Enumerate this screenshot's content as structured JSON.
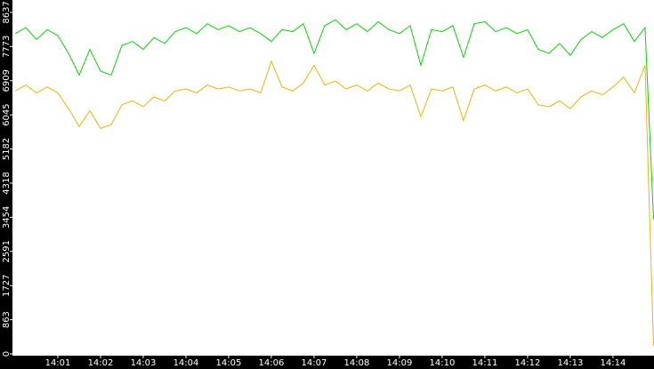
{
  "chart_data": {
    "type": "line",
    "x": [
      0,
      0.25,
      0.5,
      0.75,
      1,
      1.25,
      1.5,
      1.75,
      2,
      2.25,
      2.5,
      2.75,
      3,
      3.25,
      3.5,
      3.75,
      4,
      4.25,
      4.5,
      4.75,
      5,
      5.25,
      5.5,
      5.75,
      6,
      6.25,
      6.5,
      6.75,
      7,
      7.25,
      7.5,
      7.75,
      8,
      8.25,
      8.5,
      8.75,
      9,
      9.25,
      9.5,
      9.75,
      10,
      10.25,
      10.5,
      10.75,
      11,
      11.25,
      11.5,
      11.75,
      12,
      12.25,
      12.5,
      12.75,
      13,
      13.25,
      13.5,
      13.75,
      14,
      14.25,
      14.5,
      14.75,
      14.95
    ],
    "series": [
      {
        "color": "#00dd00",
        "values": [
          8100,
          8250,
          7950,
          8200,
          8050,
          7600,
          7050,
          7700,
          7150,
          7050,
          7800,
          7900,
          7700,
          8000,
          7850,
          8150,
          8250,
          8100,
          8350,
          8200,
          8300,
          8150,
          8250,
          8100,
          7900,
          8200,
          8150,
          8350,
          7600,
          8300,
          8450,
          8200,
          8350,
          8150,
          8400,
          8200,
          8100,
          8300,
          7300,
          8200,
          8150,
          8300,
          7500,
          8350,
          8400,
          8150,
          8250,
          8100,
          8200,
          7700,
          7600,
          7850,
          7550,
          7950,
          8150,
          8000,
          8200,
          8350,
          7900,
          8250,
          3400
        ]
      },
      {
        "color": "#f0b400",
        "values": [
          6650,
          6800,
          6600,
          6750,
          6600,
          6200,
          5750,
          6150,
          5700,
          5800,
          6300,
          6400,
          6250,
          6500,
          6400,
          6650,
          6700,
          6600,
          6800,
          6700,
          6750,
          6650,
          6700,
          6600,
          7400,
          6750,
          6650,
          6850,
          7300,
          6800,
          6900,
          6700,
          6800,
          6650,
          6850,
          6700,
          6650,
          6800,
          6000,
          6700,
          6650,
          6750,
          5900,
          6700,
          6800,
          6650,
          6750,
          6600,
          6700,
          6300,
          6250,
          6400,
          6200,
          6500,
          6650,
          6550,
          6750,
          7000,
          6600,
          7300,
          200
        ]
      }
    ],
    "xlim": [
      -0.0625,
      14.96
    ],
    "xticks": [
      {
        "value": 1,
        "label": "14:01"
      },
      {
        "value": 2,
        "label": "14:02"
      },
      {
        "value": 3,
        "label": "14:03"
      },
      {
        "value": 4,
        "label": "14:04"
      },
      {
        "value": 5,
        "label": "14:05"
      },
      {
        "value": 6,
        "label": "14:06"
      },
      {
        "value": 7,
        "label": "14:07"
      },
      {
        "value": 8,
        "label": "14:08"
      },
      {
        "value": 9,
        "label": "14:09"
      },
      {
        "value": 10,
        "label": "14:10"
      },
      {
        "value": 11,
        "label": "14:11"
      },
      {
        "value": 12,
        "label": "14:12"
      },
      {
        "value": 13,
        "label": "14:13"
      },
      {
        "value": 14,
        "label": "14:14"
      }
    ],
    "ylim": [
      0,
      8950
    ],
    "yticks": [
      0,
      863,
      1727,
      2591,
      3454,
      4318,
      5182,
      6045,
      6909,
      7773,
      8637
    ]
  }
}
